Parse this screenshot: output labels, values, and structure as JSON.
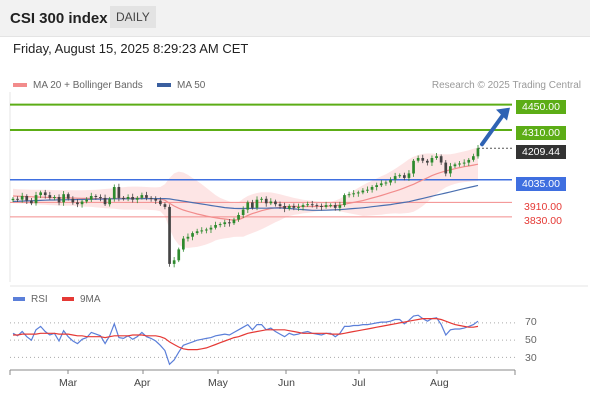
{
  "header": {
    "title": "CSI 300 index",
    "period": "DAILY"
  },
  "datetime": "Friday, August 15, 2025 8:29:23 AM CET",
  "credit": "Research © 2025 Trading Central",
  "colors": {
    "resistance": "#5cad16",
    "pivot": "#3f6fe0",
    "support": "#f28c8c",
    "last": "#333333",
    "arrow": "#2f63b4",
    "rsi": "#5b7fd9",
    "rsi_ma": "#e53935",
    "bb_fill": "#fde0e0",
    "ma20": "#f28c8c",
    "ma50": "#4a6fb0",
    "candle_up": "#2d8a2d",
    "candle_down": "#444444"
  },
  "chart_data": [
    {
      "type": "candlestick",
      "ylim": [
        3470,
        4520
      ],
      "legend": [
        {
          "name": "MA 20 + Bollinger Bands",
          "color": "#f28c8c"
        },
        {
          "name": "MA 50",
          "color": "#3a5f9f"
        }
      ],
      "levels": [
        {
          "label": "4450.00",
          "value": 4450,
          "kind": "resistance"
        },
        {
          "label": "4310.00",
          "value": 4310,
          "kind": "resistance"
        },
        {
          "label": "4209.44",
          "value": 4209.44,
          "kind": "last"
        },
        {
          "label": "4035.00",
          "value": 4035,
          "kind": "pivot"
        },
        {
          "label": "3910.00",
          "value": 3910,
          "kind": "support"
        },
        {
          "label": "3830.00",
          "value": 3830,
          "kind": "support"
        }
      ],
      "x_ticks": [
        "Mar",
        "Apr",
        "May",
        "Jun",
        "Jul",
        "Aug"
      ],
      "close": [
        3930,
        3925,
        3945,
        3920,
        3905,
        3950,
        3965,
        3950,
        3935,
        3940,
        3910,
        3955,
        3930,
        3910,
        3900,
        3915,
        3925,
        3945,
        3940,
        3935,
        3900,
        3930,
        3995,
        3935,
        3930,
        3940,
        3925,
        3935,
        3950,
        3935,
        3930,
        3920,
        3900,
        3885,
        3570,
        3590,
        3650,
        3710,
        3720,
        3740,
        3750,
        3755,
        3760,
        3770,
        3785,
        3790,
        3800,
        3795,
        3815,
        3840,
        3870,
        3910,
        3880,
        3925,
        3930,
        3905,
        3915,
        3900,
        3890,
        3875,
        3890,
        3880,
        3885,
        3895,
        3900,
        3895,
        3890,
        3885,
        3895,
        3895,
        3880,
        3895,
        3950,
        3955,
        3960,
        3965,
        3975,
        3980,
        3995,
        4005,
        4015,
        4020,
        4035,
        4055,
        4060,
        4045,
        4070,
        4140,
        4155,
        4140,
        4130,
        4155,
        4165,
        4130,
        4070,
        4110,
        4120,
        4125,
        4130,
        4145,
        4165,
        4209
      ],
      "ma20": [
        3945,
        3944,
        3943,
        3942,
        3941,
        3940,
        3939,
        3938,
        3937,
        3936,
        3935,
        3935,
        3935,
        3934,
        3933,
        3932,
        3932,
        3932,
        3931,
        3931,
        3931,
        3931,
        3932,
        3932,
        3932,
        3933,
        3933,
        3933,
        3933,
        3932,
        3931,
        3930,
        3928,
        3922,
        3905,
        3890,
        3878,
        3868,
        3860,
        3853,
        3846,
        3840,
        3834,
        3829,
        3825,
        3821,
        3818,
        3815,
        3812,
        3815,
        3825,
        3838,
        3848,
        3856,
        3864,
        3870,
        3876,
        3880,
        3883,
        3886,
        3888,
        3888,
        3887,
        3887,
        3887,
        3887,
        3888,
        3888,
        3889,
        3890,
        3892,
        3895,
        3900,
        3905,
        3910,
        3915,
        3920,
        3927,
        3934,
        3941,
        3948,
        3956,
        3964,
        3972,
        3980,
        3990,
        4000,
        4010,
        4022,
        4034,
        4046,
        4058,
        4068,
        4076,
        4084,
        4090,
        4096,
        4102,
        4107,
        4111,
        4116,
        4121
      ],
      "bb_upper": [
        3985,
        3983,
        3982,
        3981,
        3980,
        3980,
        3980,
        3979,
        3979,
        3978,
        3978,
        3978,
        3978,
        3977,
        3977,
        3977,
        3978,
        3979,
        3980,
        3982,
        3984,
        3986,
        3989,
        3992,
        3994,
        3996,
        3997,
        3997,
        3996,
        3995,
        3994,
        3993,
        3995,
        4010,
        4045,
        4070,
        4080,
        4075,
        4062,
        4045,
        4028,
        4010,
        3990,
        3970,
        3950,
        3935,
        3925,
        3915,
        3905,
        3910,
        3930,
        3945,
        3955,
        3962,
        3966,
        3966,
        3965,
        3960,
        3955,
        3948,
        3942,
        3935,
        3930,
        3925,
        3922,
        3918,
        3915,
        3912,
        3912,
        3913,
        3920,
        3930,
        3945,
        3960,
        3975,
        3990,
        4005,
        4018,
        4030,
        4042,
        4054,
        4066,
        4080,
        4095,
        4112,
        4130,
        4148,
        4162,
        4172,
        4178,
        4180,
        4180,
        4178,
        4176,
        4175,
        4176,
        4180,
        4186,
        4192,
        4198,
        4206,
        4214
      ],
      "bb_lower": [
        3905,
        3905,
        3904,
        3903,
        3902,
        3900,
        3898,
        3897,
        3895,
        3894,
        3892,
        3892,
        3892,
        3891,
        3889,
        3887,
        3886,
        3885,
        3882,
        3880,
        3878,
        3876,
        3875,
        3872,
        3870,
        3870,
        3869,
        3869,
        3870,
        3869,
        3868,
        3867,
        3861,
        3834,
        3765,
        3710,
        3676,
        3661,
        3658,
        3661,
        3664,
        3670,
        3678,
        3688,
        3700,
        3707,
        3711,
        3715,
        3719,
        3720,
        3720,
        3731,
        3741,
        3750,
        3762,
        3774,
        3787,
        3800,
        3811,
        3824,
        3834,
        3841,
        3844,
        3849,
        3852,
        3856,
        3861,
        3864,
        3866,
        3867,
        3864,
        3860,
        3855,
        3850,
        3845,
        3840,
        3835,
        3836,
        3838,
        3840,
        3842,
        3846,
        3848,
        3849,
        3848,
        3850,
        3852,
        3858,
        3872,
        3890,
        3912,
        3936,
        3958,
        3976,
        3993,
        4004,
        4012,
        4018,
        4022,
        4024,
        4026,
        4028
      ],
      "ma50": [
        3915,
        3916,
        3917,
        3918,
        3919,
        3920,
        3921,
        3922,
        3923,
        3923,
        3924,
        3924,
        3925,
        3925,
        3926,
        3926,
        3927,
        3927,
        3928,
        3928,
        3929,
        3929,
        3930,
        3930,
        3930,
        3930,
        3930,
        3930,
        3931,
        3931,
        3931,
        3931,
        3931,
        3931,
        3929,
        3925,
        3921,
        3917,
        3913,
        3909,
        3905,
        3901,
        3897,
        3893,
        3889,
        3885,
        3881,
        3879,
        3877,
        3876,
        3876,
        3877,
        3877,
        3878,
        3878,
        3878,
        3879,
        3879,
        3879,
        3878,
        3876,
        3874,
        3872,
        3870,
        3868,
        3866,
        3866,
        3866,
        3867,
        3868,
        3869,
        3870,
        3872,
        3874,
        3876,
        3878,
        3880,
        3883,
        3886,
        3889,
        3892,
        3895,
        3898,
        3902,
        3906,
        3910,
        3914,
        3920,
        3926,
        3932,
        3938,
        3944,
        3950,
        3956,
        3962,
        3968,
        3974,
        3980,
        3986,
        3992,
        3998,
        4004
      ]
    },
    {
      "type": "line",
      "ylim": [
        20,
        85
      ],
      "y_ticks": [
        70,
        50,
        30
      ],
      "legend": [
        {
          "name": "RSI",
          "color": "#5b7fd9"
        },
        {
          "name": "9MA",
          "color": "#e53935"
        }
      ],
      "series": [
        {
          "name": "RSI",
          "values": [
            58,
            55,
            60,
            54,
            50,
            62,
            66,
            60,
            56,
            58,
            49,
            61,
            54,
            49,
            46,
            51,
            53,
            59,
            57,
            55,
            46,
            55,
            69,
            53,
            52,
            55,
            51,
            54,
            59,
            54,
            52,
            49,
            44,
            38,
            22,
            27,
            36,
            44,
            46,
            48,
            50,
            51,
            52,
            53,
            55,
            56,
            57,
            56,
            59,
            62,
            65,
            68,
            62,
            68,
            68,
            62,
            64,
            60,
            57,
            54,
            58,
            56,
            57,
            59,
            60,
            58,
            57,
            56,
            58,
            58,
            54,
            58,
            66,
            66,
            67,
            67,
            68,
            68,
            69,
            70,
            71,
            71,
            72,
            74,
            74,
            69,
            73,
            78,
            79,
            75,
            72,
            75,
            76,
            68,
            56,
            62,
            63,
            63,
            64,
            66,
            68,
            72
          ]
        },
        {
          "name": "9MA",
          "values": [
            56,
            56,
            57,
            57,
            57,
            57,
            58,
            58,
            58,
            58,
            57,
            57,
            57,
            56,
            55,
            55,
            54,
            54,
            54,
            54,
            53,
            54,
            55,
            55,
            55,
            55,
            56,
            56,
            56,
            55,
            55,
            55,
            54,
            52,
            48,
            45,
            42,
            40,
            39,
            39,
            39,
            40,
            41,
            43,
            45,
            47,
            49,
            51,
            53,
            54,
            56,
            58,
            59,
            60,
            61,
            62,
            62,
            62,
            62,
            62,
            61,
            60,
            59,
            58,
            58,
            58,
            58,
            58,
            58,
            57,
            57,
            57,
            58,
            59,
            60,
            61,
            62,
            63,
            64,
            65,
            66,
            67,
            68,
            69,
            70,
            71,
            72,
            73,
            74,
            75,
            75,
            75,
            75,
            74,
            72,
            70,
            68,
            67,
            66,
            65,
            65,
            66
          ]
        }
      ]
    }
  ]
}
